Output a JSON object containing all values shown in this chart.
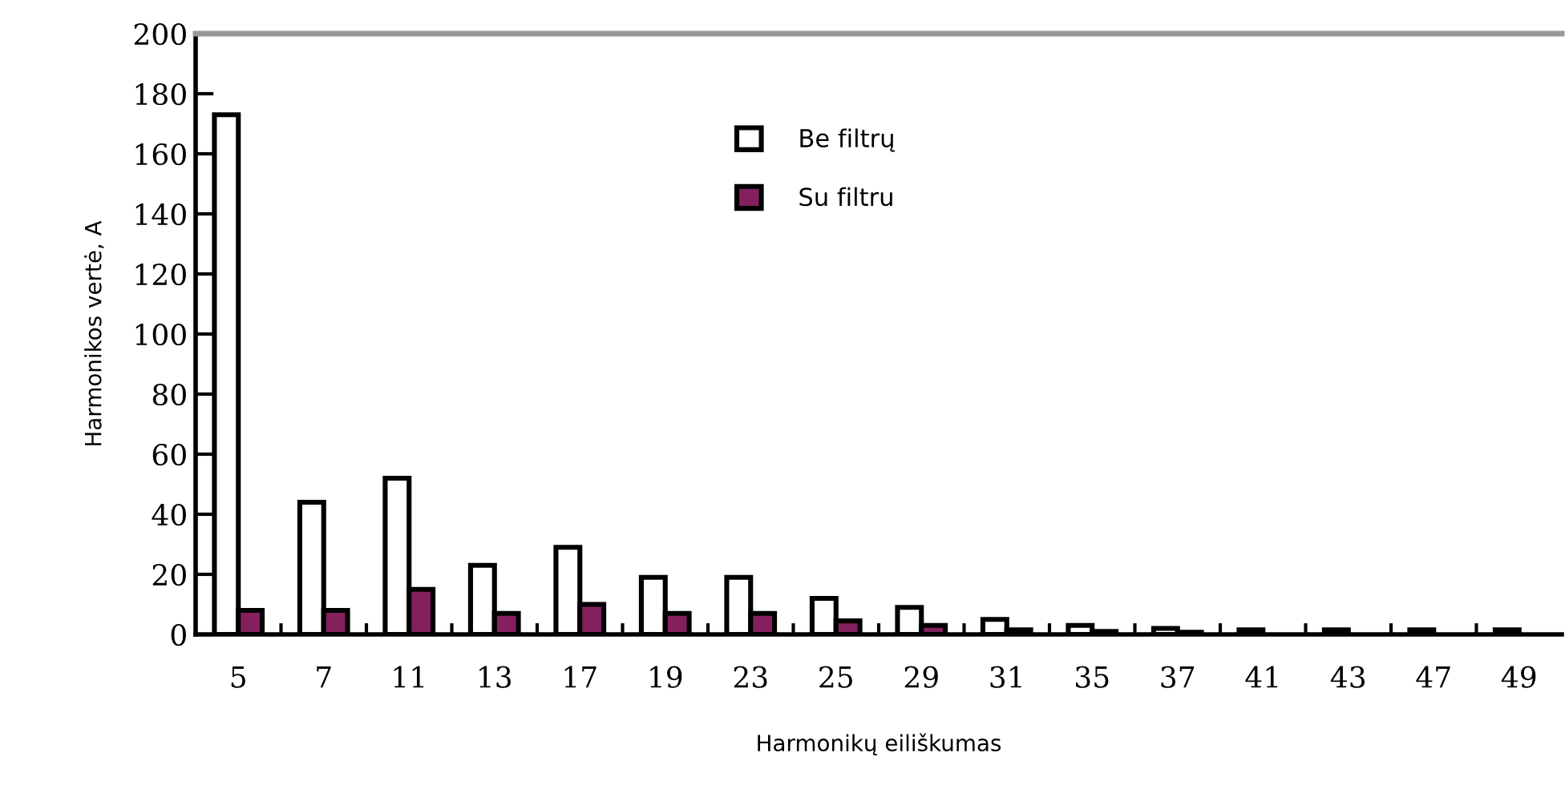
{
  "chart_data": {
    "type": "bar",
    "xlabel": "Harmonikų eiliškumas",
    "ylabel": "Harmonikos vertė, A",
    "categories": [
      "5",
      "7",
      "11",
      "13",
      "17",
      "19",
      "23",
      "25",
      "29",
      "31",
      "35",
      "37",
      "41",
      "43",
      "47",
      "49"
    ],
    "series": [
      {
        "name": "Be filtrų",
        "color": "#ffffff",
        "values": [
          173,
          44,
          52,
          23,
          29,
          19,
          19,
          12,
          9,
          5,
          3,
          2,
          1.5,
          1.5,
          1.5,
          1.5
        ]
      },
      {
        "name": "Su filtru",
        "color": "#84205e",
        "values": [
          8,
          8,
          15,
          7,
          10,
          7,
          7,
          4.5,
          3,
          1.5,
          1,
          0.7,
          null,
          null,
          null,
          null
        ]
      }
    ],
    "ylim": [
      0,
      200
    ],
    "yticks": [
      0,
      20,
      40,
      60,
      80,
      100,
      120,
      140,
      160,
      180,
      200
    ],
    "grid": false,
    "legend": "top"
  }
}
